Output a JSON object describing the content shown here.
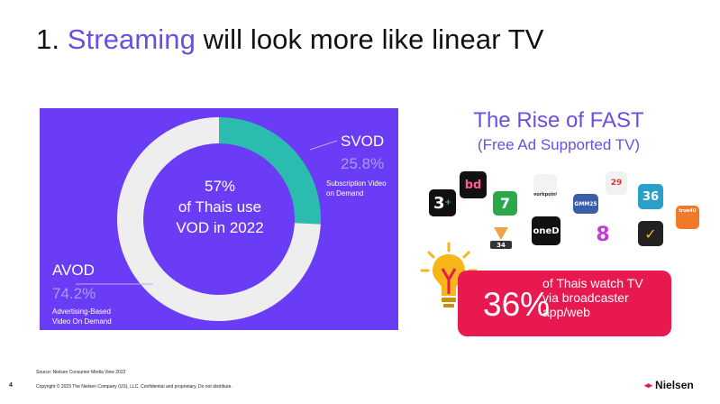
{
  "slide": {
    "title_prefix": "1. ",
    "title_highlight": "Streaming",
    "title_suffix": " will look more like linear TV",
    "page_number": "4"
  },
  "chart_data": {
    "type": "pie",
    "categories": [
      "SVOD",
      "AVOD"
    ],
    "values": [
      25.8,
      74.2
    ],
    "center_text": [
      "57%",
      "of Thais use",
      "VOD in 2022"
    ],
    "labels": {
      "svod": {
        "name": "SVOD",
        "pct": "25.8%",
        "desc": [
          "Subscription Video",
          "on Demand"
        ]
      },
      "avod": {
        "name": "AVOD",
        "pct": "74.2%",
        "desc": [
          "Advertising-Based",
          "Video On Demand"
        ]
      }
    },
    "colors": {
      "svod": "#2bbcb0",
      "avod": "#eeeeee",
      "background": "#6a3cf5"
    }
  },
  "fast": {
    "title": "The Rise of FAST",
    "subtitle": "(Free Ad Supported TV)",
    "logos": [
      {
        "name": "channel-3-logo",
        "text": "3"
      },
      {
        "name": "bugaboo-logo",
        "text": "bd"
      },
      {
        "name": "channel-7-logo",
        "text": "7"
      },
      {
        "name": "workpoint-logo",
        "text": "workpoint"
      },
      {
        "name": "gmm25-logo",
        "text": "GMM25"
      },
      {
        "name": "mono29-logo",
        "text": "29"
      },
      {
        "name": "amarin-logo",
        "text": "34"
      },
      {
        "name": "one31-logo",
        "text": "oneD"
      },
      {
        "name": "channel-8-logo",
        "text": "8"
      },
      {
        "name": "pptv-logo",
        "text": "36"
      },
      {
        "name": "true4u-logo",
        "text": "true4U"
      },
      {
        "name": "monkey-logo",
        "text": "✓"
      }
    ]
  },
  "stat": {
    "number": "36%",
    "line1": "of Thais watch TV",
    "line2": "via broadcaster",
    "line3": "app/web"
  },
  "footer": {
    "source": "Source: Nielsen Consumer Media View 2022",
    "copyright": "Copyright © 2023 The Nielsen Company (US), LLC. Confidential and proprietary. Do not distribute.",
    "brand": "Nielsen"
  },
  "colors": {
    "accent": "#6b4fe0",
    "stat_bg": "#e8194f",
    "bulb": "#f6b619"
  }
}
